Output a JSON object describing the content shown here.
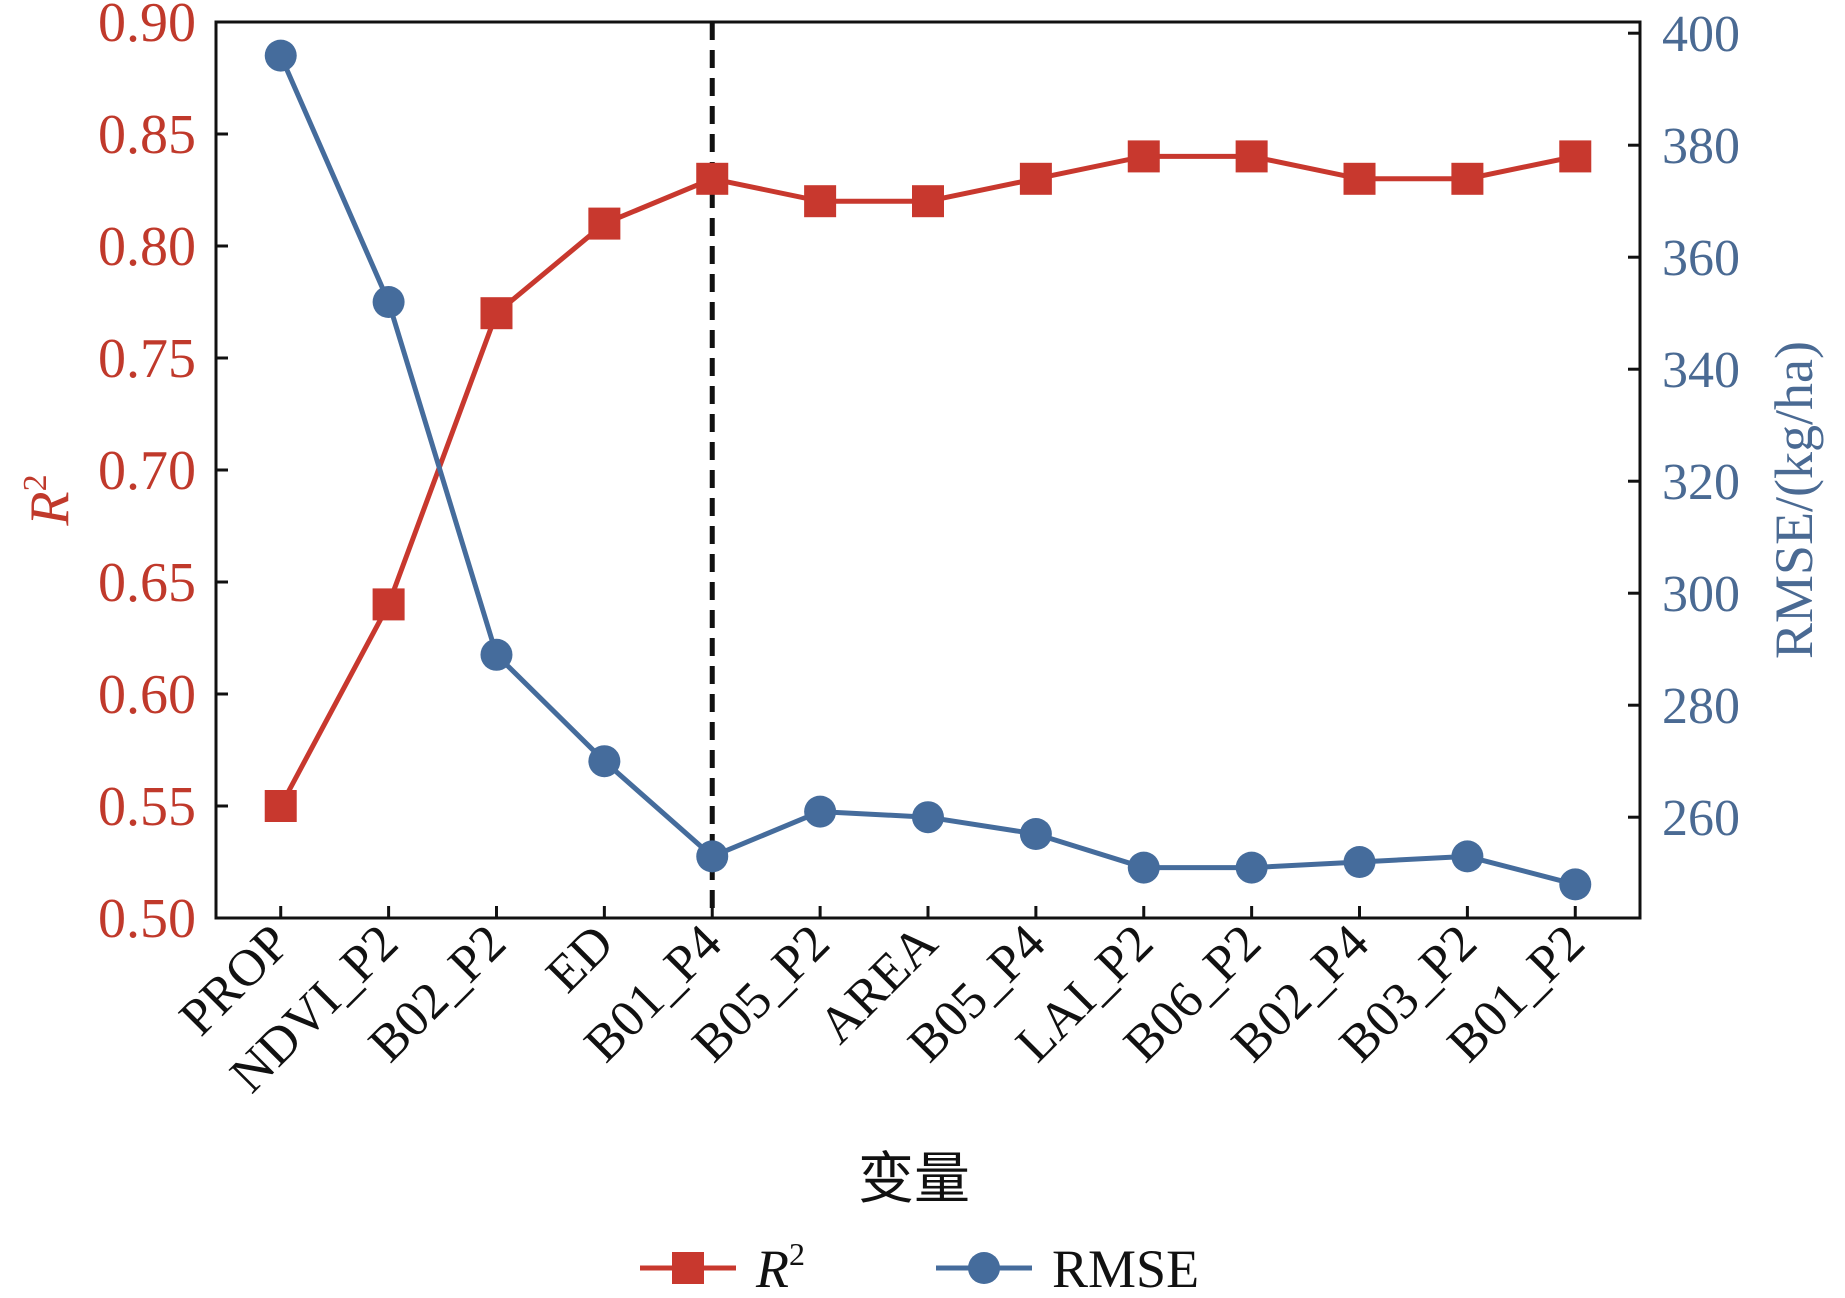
{
  "chart_data": {
    "type": "line",
    "categories": [
      "PROP",
      "NDVI_P2",
      "B02_P2",
      "ED",
      "B01_P4",
      "B05_P2",
      "AREA",
      "B05_P4",
      "LAI_P2",
      "B06_P2",
      "B02_P4",
      "B03_P2",
      "B01_P2"
    ],
    "xlabel": "变量",
    "y_left": {
      "label_base": "R",
      "label_sup": "2",
      "ylim": [
        0.5,
        0.9
      ],
      "ticks": [
        "0.50",
        "0.55",
        "0.60",
        "0.65",
        "0.70",
        "0.75",
        "0.80",
        "0.85",
        "0.90"
      ]
    },
    "y_right": {
      "label": "RMSE/(kg/ha)",
      "ylim": [
        242,
        402
      ],
      "ticks": [
        "260",
        "280",
        "300",
        "320",
        "340",
        "360",
        "380",
        "400"
      ]
    },
    "series": [
      {
        "name": "R2",
        "axis": "left",
        "marker": "square",
        "color": "#C8382E",
        "values": [
          0.55,
          0.64,
          0.77,
          0.81,
          0.83,
          0.82,
          0.82,
          0.83,
          0.84,
          0.84,
          0.83,
          0.83,
          0.84
        ]
      },
      {
        "name": "RMSE",
        "axis": "right",
        "marker": "circle",
        "color": "#456C9C",
        "values": [
          396,
          352,
          289,
          270,
          253,
          261,
          260,
          257,
          251,
          251,
          252,
          253,
          248
        ]
      }
    ],
    "vline_category": "B01_P4",
    "legend": {
      "placement": "bottom",
      "items": [
        {
          "base": "R",
          "sup": "2",
          "marker": "square",
          "color": "#C8382E"
        },
        {
          "label": "RMSE",
          "marker": "circle",
          "color": "#456C9C"
        }
      ]
    },
    "colors": {
      "left_axis_text": "#C0392B",
      "right_axis_text": "#4A6A93",
      "frame": "#111111"
    }
  }
}
